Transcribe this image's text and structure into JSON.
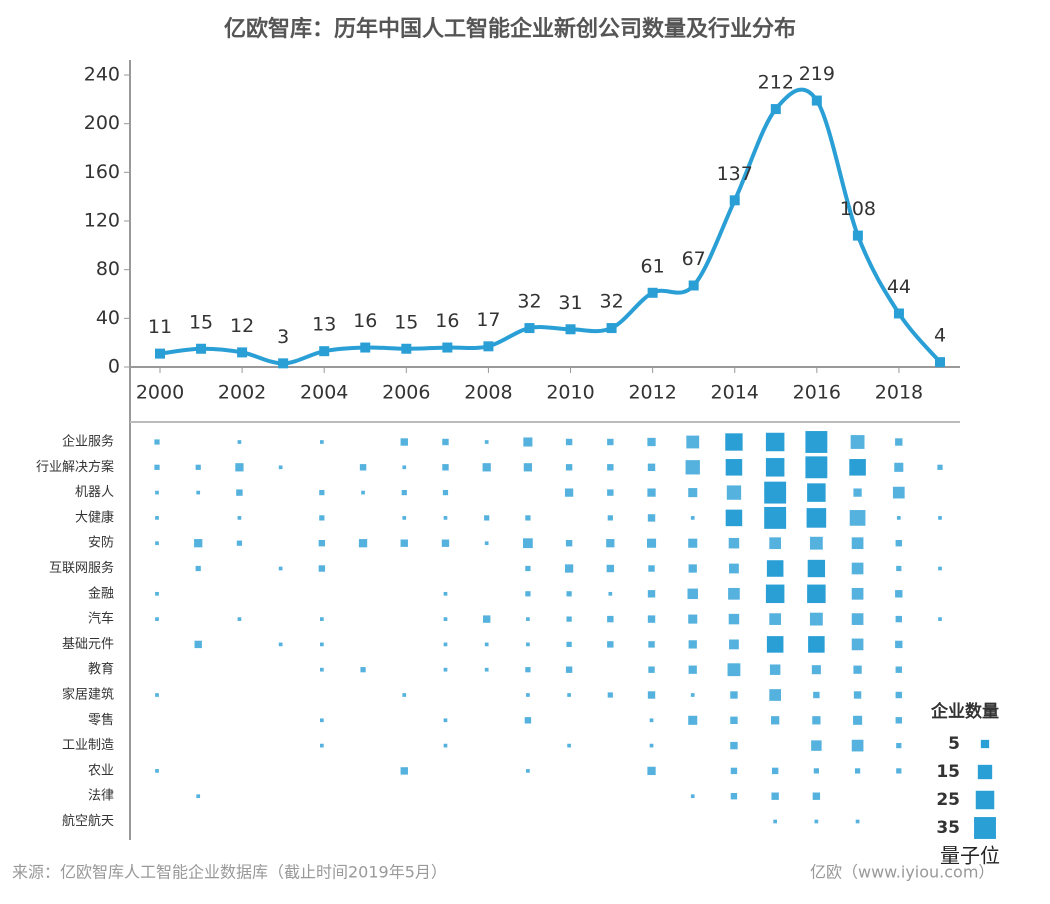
{
  "chart_data": [
    {
      "type": "line",
      "title": "亿欧智库：历年中国人工智能企业新创公司数量及行业分布",
      "x": [
        2000,
        2001,
        2002,
        2003,
        2004,
        2005,
        2006,
        2007,
        2008,
        2009,
        2010,
        2011,
        2012,
        2013,
        2014,
        2015,
        2016,
        2017,
        2018,
        2019
      ],
      "series": [
        {
          "name": "新创公司数量",
          "color": "#2a9fd6",
          "values": [
            11,
            15,
            12,
            3,
            13,
            16,
            15,
            16,
            17,
            32,
            31,
            32,
            61,
            67,
            137,
            212,
            219,
            108,
            44,
            4
          ]
        }
      ],
      "xlim": [
        2000,
        2019
      ],
      "xticks": [
        2000,
        2002,
        2004,
        2006,
        2008,
        2010,
        2012,
        2014,
        2016,
        2018
      ],
      "ylim": [
        0,
        240
      ],
      "yticks": [
        0,
        40,
        80,
        120,
        160,
        200,
        240
      ]
    },
    {
      "type": "square-matrix",
      "color": "#2a9fd6",
      "x": [
        2000,
        2001,
        2002,
        2003,
        2004,
        2005,
        2006,
        2007,
        2008,
        2009,
        2010,
        2011,
        2012,
        2013,
        2014,
        2015,
        2016,
        2017,
        2018,
        2019
      ],
      "categories": [
        "企业服务",
        "行业解决方案",
        "机器人",
        "大健康",
        "安防",
        "互联网服务",
        "金融",
        "汽车",
        "基础元件",
        "教育",
        "家居建筑",
        "零售",
        "工业制造",
        "农业",
        "法律",
        "航空航天"
      ],
      "values": [
        [
          2,
          null,
          1,
          null,
          1,
          null,
          4,
          3,
          1,
          6,
          3,
          3,
          5,
          12,
          22,
          25,
          35,
          14,
          4,
          null
        ],
        [
          2,
          2,
          5,
          1,
          null,
          3,
          1,
          3,
          5,
          5,
          3,
          3,
          4,
          15,
          20,
          25,
          35,
          20,
          6,
          2
        ],
        [
          1,
          1,
          3,
          null,
          2,
          1,
          2,
          2,
          null,
          null,
          5,
          3,
          5,
          6,
          15,
          35,
          25,
          5,
          10,
          null
        ],
        [
          1,
          null,
          1,
          null,
          2,
          null,
          1,
          1,
          2,
          2,
          null,
          2,
          4,
          1,
          20,
          35,
          28,
          18,
          1,
          1
        ],
        [
          1,
          5,
          2,
          null,
          3,
          5,
          4,
          4,
          1,
          7,
          3,
          5,
          6,
          6,
          8,
          10,
          12,
          10,
          3,
          null
        ],
        [
          null,
          2,
          null,
          1,
          3,
          null,
          null,
          null,
          null,
          2,
          5,
          4,
          3,
          5,
          7,
          20,
          22,
          10,
          2,
          1
        ],
        [
          1,
          null,
          null,
          null,
          null,
          null,
          null,
          1,
          null,
          2,
          2,
          1,
          4,
          8,
          10,
          25,
          25,
          10,
          4,
          null
        ],
        [
          1,
          null,
          1,
          null,
          1,
          null,
          null,
          1,
          4,
          1,
          2,
          3,
          4,
          6,
          8,
          10,
          12,
          10,
          3,
          1
        ],
        [
          null,
          4,
          null,
          1,
          1,
          null,
          null,
          1,
          1,
          1,
          2,
          3,
          3,
          5,
          7,
          20,
          20,
          10,
          4,
          null
        ],
        [
          null,
          null,
          null,
          null,
          1,
          2,
          null,
          1,
          1,
          2,
          3,
          null,
          3,
          5,
          12,
          8,
          6,
          5,
          3,
          null
        ],
        [
          1,
          null,
          null,
          null,
          null,
          null,
          1,
          null,
          null,
          1,
          1,
          2,
          4,
          1,
          4,
          10,
          3,
          4,
          3,
          null
        ],
        [
          null,
          null,
          null,
          null,
          1,
          null,
          null,
          1,
          null,
          3,
          null,
          null,
          1,
          6,
          4,
          5,
          5,
          6,
          3,
          null
        ],
        [
          null,
          null,
          null,
          null,
          1,
          null,
          null,
          1,
          null,
          null,
          1,
          null,
          1,
          null,
          4,
          null,
          8,
          10,
          2,
          null
        ],
        [
          1,
          null,
          null,
          null,
          null,
          null,
          4,
          null,
          null,
          1,
          null,
          null,
          5,
          null,
          3,
          3,
          2,
          2,
          2,
          null
        ],
        [
          null,
          1,
          null,
          null,
          null,
          null,
          null,
          null,
          null,
          null,
          null,
          null,
          null,
          1,
          3,
          4,
          4,
          null,
          null,
          null
        ],
        [
          null,
          null,
          null,
          null,
          null,
          null,
          null,
          null,
          null,
          null,
          null,
          null,
          null,
          null,
          null,
          1,
          1,
          1,
          null,
          null
        ]
      ],
      "size_legend": {
        "title": "企业数量",
        "values": [
          5,
          15,
          25,
          35
        ]
      }
    }
  ],
  "source": "来源：亿欧智库人工智能企业数据库（截止时间2019年5月）",
  "credit": "亿欧（www.iyiou.com）",
  "watermark": "量子位"
}
